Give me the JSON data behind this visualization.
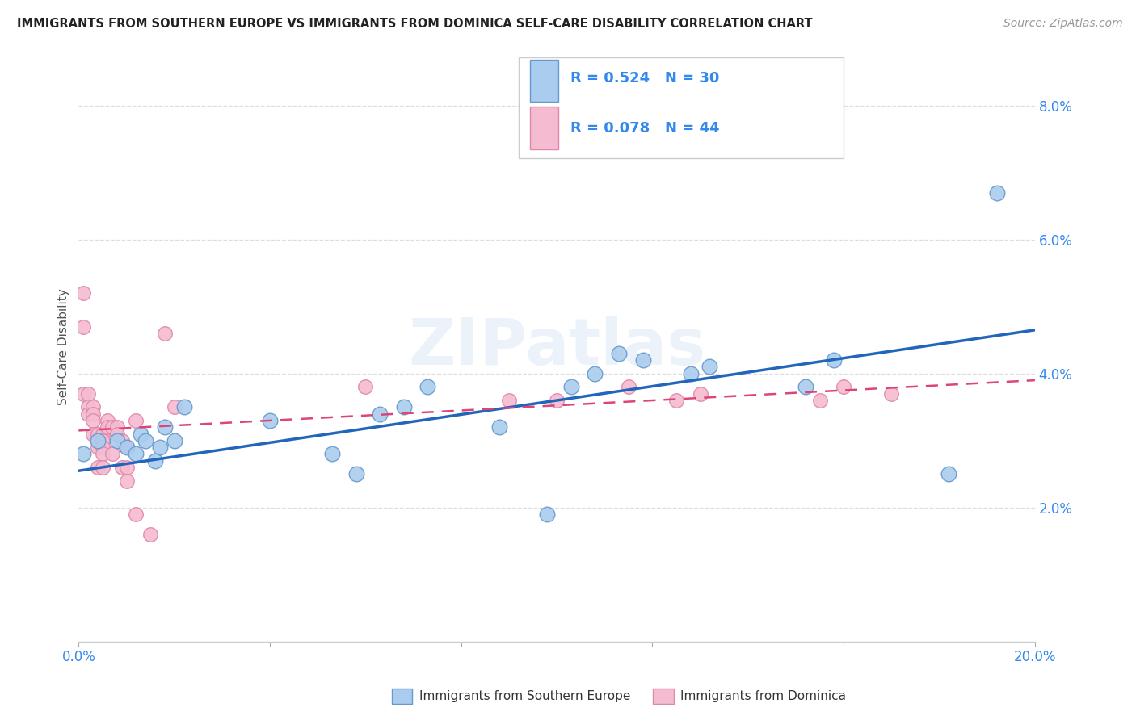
{
  "title": "IMMIGRANTS FROM SOUTHERN EUROPE VS IMMIGRANTS FROM DOMINICA SELF-CARE DISABILITY CORRELATION CHART",
  "source": "Source: ZipAtlas.com",
  "ylabel": "Self-Care Disability",
  "xlim": [
    0.0,
    0.2
  ],
  "ylim": [
    0.0,
    0.088
  ],
  "xticks_show": [
    0.0,
    0.2
  ],
  "yticks": [
    0.02,
    0.04,
    0.06,
    0.08
  ],
  "background_color": "#ffffff",
  "watermark": "ZIPatlas",
  "blue_R": "0.524",
  "blue_N": "30",
  "pink_R": "0.078",
  "pink_N": "44",
  "blue_color": "#aaccee",
  "blue_edge": "#6699cc",
  "pink_color": "#f5bbd0",
  "pink_edge": "#dd88aa",
  "blue_line_color": "#2266bb",
  "pink_line_color": "#dd4477",
  "legend_label_blue": "Immigrants from Southern Europe",
  "legend_label_pink": "Immigrants from Dominica",
  "legend_text_color": "#3388ee",
  "blue_x": [
    0.001,
    0.004,
    0.008,
    0.01,
    0.012,
    0.013,
    0.014,
    0.016,
    0.017,
    0.018,
    0.02,
    0.022,
    0.04,
    0.053,
    0.058,
    0.063,
    0.068,
    0.073,
    0.088,
    0.098,
    0.103,
    0.108,
    0.113,
    0.118,
    0.128,
    0.132,
    0.152,
    0.158,
    0.182,
    0.192
  ],
  "blue_y": [
    0.028,
    0.03,
    0.03,
    0.029,
    0.028,
    0.031,
    0.03,
    0.027,
    0.029,
    0.032,
    0.03,
    0.035,
    0.033,
    0.028,
    0.025,
    0.034,
    0.035,
    0.038,
    0.032,
    0.019,
    0.038,
    0.04,
    0.043,
    0.042,
    0.04,
    0.041,
    0.038,
    0.042,
    0.025,
    0.067
  ],
  "pink_x": [
    0.001,
    0.001,
    0.001,
    0.002,
    0.002,
    0.002,
    0.003,
    0.003,
    0.003,
    0.003,
    0.004,
    0.004,
    0.004,
    0.004,
    0.005,
    0.005,
    0.005,
    0.005,
    0.005,
    0.006,
    0.006,
    0.007,
    0.007,
    0.008,
    0.008,
    0.009,
    0.009,
    0.01,
    0.01,
    0.01,
    0.012,
    0.012,
    0.015,
    0.018,
    0.02,
    0.06,
    0.09,
    0.1,
    0.115,
    0.125,
    0.13,
    0.155,
    0.16,
    0.17
  ],
  "pink_y": [
    0.052,
    0.047,
    0.037,
    0.037,
    0.035,
    0.034,
    0.035,
    0.034,
    0.033,
    0.031,
    0.031,
    0.03,
    0.029,
    0.026,
    0.031,
    0.03,
    0.029,
    0.028,
    0.026,
    0.033,
    0.032,
    0.032,
    0.028,
    0.032,
    0.031,
    0.03,
    0.026,
    0.029,
    0.026,
    0.024,
    0.033,
    0.019,
    0.016,
    0.046,
    0.035,
    0.038,
    0.036,
    0.036,
    0.038,
    0.036,
    0.037,
    0.036,
    0.038,
    0.037
  ],
  "blue_trend_x0": 0.0,
  "blue_trend_y0": 0.0255,
  "blue_trend_x1": 0.2,
  "blue_trend_y1": 0.0465,
  "pink_trend_x0": 0.0,
  "pink_trend_y0": 0.0315,
  "pink_trend_x1": 0.2,
  "pink_trend_y1": 0.039
}
